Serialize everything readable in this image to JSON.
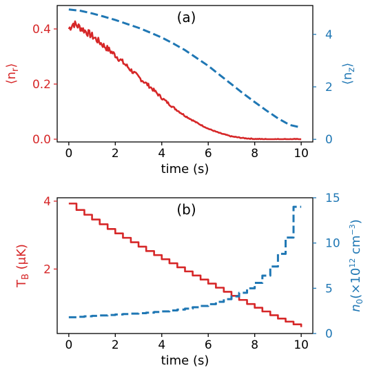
{
  "colors": {
    "left": "#d62728",
    "right": "#1f77b4",
    "axes": "#000000"
  },
  "chart_data": [
    {
      "type": "line",
      "panel_label": "(a)",
      "xlabel": "time (s)",
      "ylabel_left": "⟨n",
      "ylabel_left_sub": "r",
      "ylabel_left_close": "⟩",
      "ylabel_right": "⟨n",
      "ylabel_right_sub": "z",
      "ylabel_right_close": "⟩",
      "xlim": [
        -0.5,
        10.5
      ],
      "ylim_left": [
        -0.01,
        0.485
      ],
      "ylim_right": [
        -0.1,
        5.1
      ],
      "xticks": [
        0,
        2,
        4,
        6,
        8,
        10
      ],
      "yticks_left": [
        "0.0",
        "0.2",
        "0.4"
      ],
      "yticks_right": [
        "0",
        "2",
        "4"
      ],
      "series": [
        {
          "axis": "left",
          "style": "solid-noisy",
          "x": [
            0,
            0.2,
            0.5,
            1,
            1.5,
            2,
            2.5,
            3,
            3.5,
            4,
            4.5,
            5,
            5.5,
            6,
            6.5,
            7,
            7.5,
            8,
            8.5,
            9,
            9.5,
            10
          ],
          "y": [
            0.4,
            0.42,
            0.405,
            0.375,
            0.34,
            0.305,
            0.265,
            0.225,
            0.19,
            0.15,
            0.115,
            0.085,
            0.06,
            0.038,
            0.022,
            0.01,
            0.004,
            0.001,
            0.0,
            0.0,
            0.0,
            0.0
          ]
        },
        {
          "axis": "right",
          "style": "dashed",
          "x": [
            0,
            0.5,
            1,
            1.5,
            2,
            2.5,
            3,
            3.5,
            4,
            4.5,
            5,
            5.5,
            6,
            6.5,
            7,
            7.5,
            8,
            8.5,
            9,
            9.5,
            10
          ],
          "y": [
            4.95,
            4.9,
            4.8,
            4.68,
            4.55,
            4.4,
            4.25,
            4.07,
            3.88,
            3.65,
            3.4,
            3.1,
            2.8,
            2.45,
            2.1,
            1.75,
            1.42,
            1.1,
            0.8,
            0.55,
            0.45
          ]
        }
      ]
    },
    {
      "type": "line",
      "panel_label": "(b)",
      "xlabel": "time (s)",
      "ylabel_left": "T",
      "ylabel_left_sub": "B",
      "ylabel_left_close": " (μK)",
      "ylabel_right": "n",
      "ylabel_right_sub": "0",
      "ylabel_right_close": "(×10",
      "ylabel_right_sup": "12",
      "ylabel_right_unit": " cm",
      "ylabel_right_unit_sup": "−3",
      "ylabel_right_end": ")",
      "xlim": [
        -0.5,
        10.5
      ],
      "ylim_left": [
        0.1,
        4.1
      ],
      "ylim_right": [
        0,
        15
      ],
      "xticks": [
        0,
        2,
        4,
        6,
        8,
        10
      ],
      "yticks_left": [
        "2",
        "4"
      ],
      "yticks_right": [
        "0",
        "5",
        "10",
        "15"
      ],
      "series": [
        {
          "axis": "left",
          "style": "solid-step",
          "x": [
            0,
            0.33,
            0.67,
            1.0,
            1.33,
            1.67,
            2.0,
            2.33,
            2.67,
            3.0,
            3.33,
            3.67,
            4.0,
            4.33,
            4.67,
            5.0,
            5.33,
            5.67,
            6.0,
            6.33,
            6.67,
            7.0,
            7.33,
            7.67,
            8.0,
            8.33,
            8.67,
            9.0,
            9.33,
            9.67,
            10.0
          ],
          "y": [
            3.93,
            3.74,
            3.6,
            3.46,
            3.32,
            3.18,
            3.05,
            2.92,
            2.79,
            2.66,
            2.53,
            2.41,
            2.29,
            2.17,
            2.05,
            1.93,
            1.81,
            1.69,
            1.57,
            1.45,
            1.33,
            1.21,
            1.09,
            0.97,
            0.86,
            0.75,
            0.64,
            0.54,
            0.45,
            0.37,
            0.29
          ]
        },
        {
          "axis": "right",
          "style": "dashed-step",
          "x": [
            0,
            0.33,
            0.67,
            1.0,
            1.33,
            1.67,
            2.0,
            2.33,
            2.67,
            3.0,
            3.33,
            3.67,
            4.0,
            4.33,
            4.67,
            5.0,
            5.33,
            5.67,
            6.0,
            6.33,
            6.67,
            7.0,
            7.33,
            7.67,
            8.0,
            8.33,
            8.67,
            9.0,
            9.33,
            9.67,
            10.0
          ],
          "y": [
            1.8,
            1.85,
            1.9,
            1.95,
            2.0,
            2.05,
            2.1,
            2.15,
            2.2,
            2.25,
            2.3,
            2.38,
            2.45,
            2.55,
            2.65,
            2.75,
            2.9,
            3.05,
            3.25,
            3.5,
            3.8,
            4.1,
            4.5,
            5.0,
            5.6,
            6.4,
            7.4,
            8.8,
            10.6,
            14.0,
            14.0
          ]
        }
      ]
    }
  ]
}
